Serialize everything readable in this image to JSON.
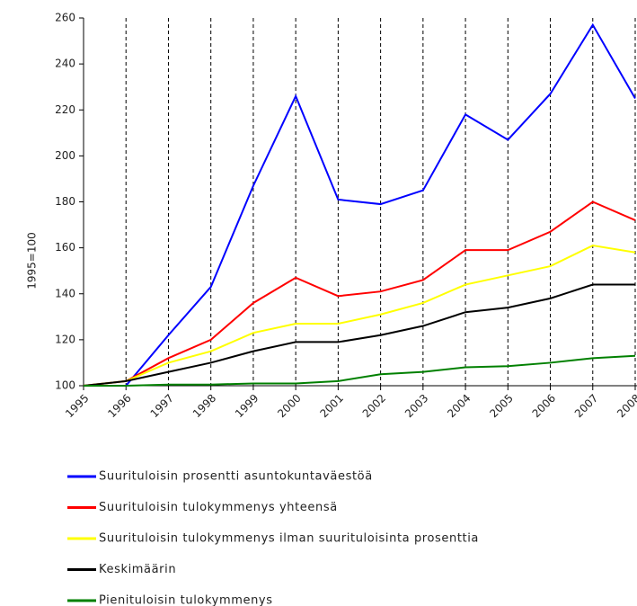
{
  "chart_data": {
    "type": "line",
    "y_label": "1995=100",
    "categories": [
      "1995",
      "1996",
      "1997",
      "1998",
      "1999",
      "2000",
      "2001",
      "2002",
      "2003",
      "2004",
      "2005",
      "2006",
      "2007",
      "2008"
    ],
    "series": [
      {
        "name": "Suurituloisin prosentti asuntokuntaväestöä",
        "color": "#0000ff",
        "values": [
          100,
          100,
          122,
          143,
          187,
          226,
          181,
          179,
          185,
          218,
          207,
          227,
          257,
          225
        ]
      },
      {
        "name": "Suurituloisin tulokymmenys yhteensä",
        "color": "#ff0000",
        "values": [
          100,
          102,
          112,
          120,
          136,
          147,
          139,
          141,
          146,
          159,
          159,
          167,
          180,
          172
        ]
      },
      {
        "name": "Suurituloisin tulokymmenys ilman suurituloisinta prosenttia",
        "color": "#ffff00",
        "values": [
          100,
          102,
          110,
          115,
          123,
          127,
          127,
          131,
          136,
          144,
          148,
          152,
          161,
          158
        ]
      },
      {
        "name": "Keskimäärin",
        "color": "#000000",
        "values": [
          100,
          102,
          106,
          110,
          115,
          119,
          119,
          122,
          126,
          132,
          134,
          138,
          144,
          144
        ]
      },
      {
        "name": "Pienituloisin tulokymmenys",
        "color": "#008000",
        "values": [
          100,
          100,
          100.5,
          100.5,
          101,
          101,
          102,
          105,
          106,
          108,
          108.5,
          110,
          112,
          113
        ]
      }
    ],
    "ylim": [
      100,
      260
    ],
    "yticks": [
      100,
      120,
      140,
      160,
      180,
      200,
      220,
      240,
      260
    ],
    "xgrid": true,
    "grid": false,
    "legend": "bottom"
  }
}
